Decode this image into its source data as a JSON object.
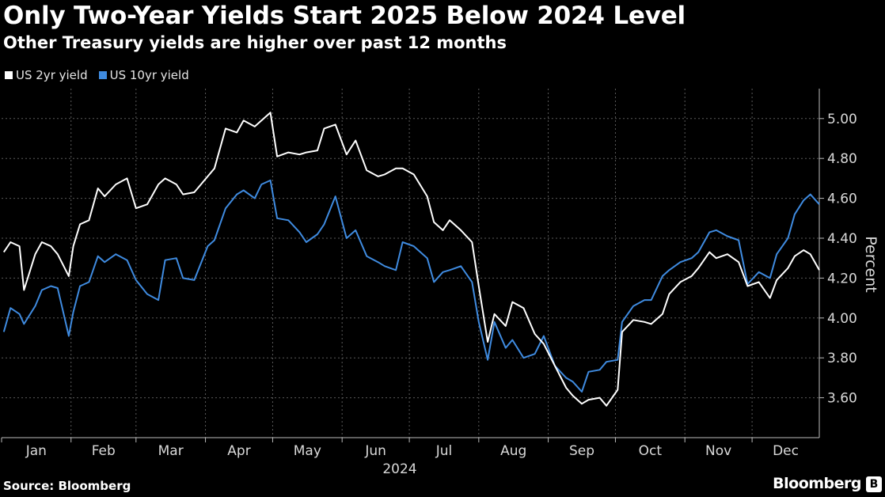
{
  "title": "Only Two-Year Yields Start 2025 Below 2024 Level",
  "subtitle": "Other Treasury yields are higher over past 12 months",
  "source": "Source: Bloomberg",
  "brand": "Bloomberg",
  "brand_badge": "B",
  "colors": {
    "background": "#000000",
    "us_2yr": "#ffffff",
    "us_10yr": "#3f8be0",
    "grid": "#555555"
  },
  "chart_data": {
    "type": "line",
    "title": "Only Two-Year Yields Start 2025 Below 2024 Level",
    "subtitle": "Other Treasury yields are higher over past 12 months",
    "xlabel": "2024",
    "ylabel": "Percent",
    "ylim": [
      3.4,
      5.15
    ],
    "yticks": [
      3.6,
      3.8,
      4.0,
      4.2,
      4.4,
      4.6,
      4.8,
      5.0
    ],
    "ytick_labels": [
      "3.60",
      "3.80",
      "4.00",
      "4.20",
      "4.40",
      "4.60",
      "4.80",
      "5.00"
    ],
    "x_range": [
      "2024-01-01",
      "2024-12-31"
    ],
    "x_months": [
      "Jan",
      "Feb",
      "Mar",
      "Apr",
      "May",
      "Jun",
      "Jul",
      "Aug",
      "Sep",
      "Oct",
      "Nov",
      "Dec"
    ],
    "x_year_label": "2024",
    "grid": true,
    "legend_position": "top-left",
    "series": [
      {
        "name": "US 2yr yield",
        "color": "#ffffff",
        "dates": [
          "2024-01-02",
          "2024-01-05",
          "2024-01-09",
          "2024-01-11",
          "2024-01-16",
          "2024-01-19",
          "2024-01-23",
          "2024-01-26",
          "2024-01-31",
          "2024-02-02",
          "2024-02-05",
          "2024-02-09",
          "2024-02-13",
          "2024-02-16",
          "2024-02-21",
          "2024-02-26",
          "2024-03-01",
          "2024-03-06",
          "2024-03-11",
          "2024-03-14",
          "2024-03-19",
          "2024-03-22",
          "2024-03-27",
          "2024-04-02",
          "2024-04-05",
          "2024-04-10",
          "2024-04-15",
          "2024-04-18",
          "2024-04-23",
          "2024-04-26",
          "2024-04-30",
          "2024-05-03",
          "2024-05-08",
          "2024-05-13",
          "2024-05-16",
          "2024-05-21",
          "2024-05-24",
          "2024-05-29",
          "2024-06-03",
          "2024-06-07",
          "2024-06-12",
          "2024-06-17",
          "2024-06-20",
          "2024-06-25",
          "2024-06-28",
          "2024-07-03",
          "2024-07-09",
          "2024-07-12",
          "2024-07-16",
          "2024-07-19",
          "2024-07-24",
          "2024-07-29",
          "2024-08-01",
          "2024-08-05",
          "2024-08-08",
          "2024-08-13",
          "2024-08-16",
          "2024-08-21",
          "2024-08-26",
          "2024-08-30",
          "2024-09-04",
          "2024-09-09",
          "2024-09-12",
          "2024-09-16",
          "2024-09-19",
          "2024-09-24",
          "2024-09-27",
          "2024-10-02",
          "2024-10-04",
          "2024-10-09",
          "2024-10-14",
          "2024-10-17",
          "2024-10-22",
          "2024-10-25",
          "2024-10-30",
          "2024-11-04",
          "2024-11-07",
          "2024-11-12",
          "2024-11-15",
          "2024-11-20",
          "2024-11-25",
          "2024-11-29",
          "2024-12-04",
          "2024-12-09",
          "2024-12-12",
          "2024-12-17",
          "2024-12-20",
          "2024-12-24",
          "2024-12-27",
          "2024-12-31"
        ],
        "values": [
          4.33,
          4.38,
          4.36,
          4.14,
          4.32,
          4.38,
          4.36,
          4.32,
          4.21,
          4.36,
          4.47,
          4.49,
          4.65,
          4.61,
          4.67,
          4.7,
          4.55,
          4.57,
          4.67,
          4.7,
          4.67,
          4.62,
          4.63,
          4.71,
          4.75,
          4.95,
          4.93,
          4.99,
          4.96,
          4.99,
          5.03,
          4.81,
          4.83,
          4.82,
          4.83,
          4.84,
          4.95,
          4.97,
          4.82,
          4.89,
          4.74,
          4.71,
          4.72,
          4.75,
          4.75,
          4.72,
          4.61,
          4.48,
          4.44,
          4.49,
          4.44,
          4.38,
          4.16,
          3.88,
          4.02,
          3.96,
          4.08,
          4.05,
          3.92,
          3.87,
          3.76,
          3.65,
          3.61,
          3.57,
          3.59,
          3.6,
          3.56,
          3.64,
          3.93,
          3.99,
          3.98,
          3.97,
          4.02,
          4.12,
          4.18,
          4.21,
          4.25,
          4.33,
          4.3,
          4.32,
          4.28,
          4.16,
          4.18,
          4.1,
          4.19,
          4.25,
          4.31,
          4.34,
          4.32,
          4.24
        ]
      },
      {
        "name": "US 10yr yield",
        "color": "#3f8be0",
        "dates": [
          "2024-01-02",
          "2024-01-05",
          "2024-01-09",
          "2024-01-11",
          "2024-01-16",
          "2024-01-19",
          "2024-01-23",
          "2024-01-26",
          "2024-01-31",
          "2024-02-02",
          "2024-02-05",
          "2024-02-09",
          "2024-02-13",
          "2024-02-16",
          "2024-02-21",
          "2024-02-26",
          "2024-03-01",
          "2024-03-06",
          "2024-03-11",
          "2024-03-14",
          "2024-03-19",
          "2024-03-22",
          "2024-03-27",
          "2024-04-02",
          "2024-04-05",
          "2024-04-10",
          "2024-04-15",
          "2024-04-18",
          "2024-04-23",
          "2024-04-26",
          "2024-04-30",
          "2024-05-03",
          "2024-05-08",
          "2024-05-13",
          "2024-05-16",
          "2024-05-21",
          "2024-05-24",
          "2024-05-29",
          "2024-06-03",
          "2024-06-07",
          "2024-06-12",
          "2024-06-17",
          "2024-06-20",
          "2024-06-25",
          "2024-06-28",
          "2024-07-03",
          "2024-07-09",
          "2024-07-12",
          "2024-07-16",
          "2024-07-19",
          "2024-07-24",
          "2024-07-29",
          "2024-08-01",
          "2024-08-05",
          "2024-08-08",
          "2024-08-13",
          "2024-08-16",
          "2024-08-21",
          "2024-08-26",
          "2024-08-30",
          "2024-09-04",
          "2024-09-09",
          "2024-09-12",
          "2024-09-16",
          "2024-09-19",
          "2024-09-24",
          "2024-09-27",
          "2024-10-02",
          "2024-10-04",
          "2024-10-09",
          "2024-10-14",
          "2024-10-17",
          "2024-10-22",
          "2024-10-25",
          "2024-10-30",
          "2024-11-04",
          "2024-11-07",
          "2024-11-12",
          "2024-11-15",
          "2024-11-20",
          "2024-11-25",
          "2024-11-29",
          "2024-12-04",
          "2024-12-09",
          "2024-12-12",
          "2024-12-17",
          "2024-12-20",
          "2024-12-24",
          "2024-12-27",
          "2024-12-31"
        ],
        "values": [
          3.93,
          4.05,
          4.02,
          3.97,
          4.06,
          4.14,
          4.16,
          4.15,
          3.91,
          4.03,
          4.16,
          4.18,
          4.31,
          4.28,
          4.32,
          4.29,
          4.19,
          4.12,
          4.09,
          4.29,
          4.3,
          4.2,
          4.19,
          4.36,
          4.39,
          4.55,
          4.62,
          4.64,
          4.6,
          4.67,
          4.69,
          4.5,
          4.49,
          4.43,
          4.38,
          4.42,
          4.47,
          4.61,
          4.4,
          4.44,
          4.31,
          4.28,
          4.26,
          4.24,
          4.38,
          4.36,
          4.3,
          4.18,
          4.23,
          4.24,
          4.26,
          4.18,
          3.98,
          3.79,
          3.98,
          3.85,
          3.89,
          3.8,
          3.82,
          3.91,
          3.76,
          3.7,
          3.68,
          3.63,
          3.73,
          3.74,
          3.78,
          3.79,
          3.98,
          4.06,
          4.09,
          4.09,
          4.21,
          4.24,
          4.28,
          4.3,
          4.33,
          4.43,
          4.44,
          4.41,
          4.39,
          4.17,
          4.23,
          4.2,
          4.32,
          4.4,
          4.52,
          4.59,
          4.62,
          4.57
        ]
      }
    ]
  }
}
